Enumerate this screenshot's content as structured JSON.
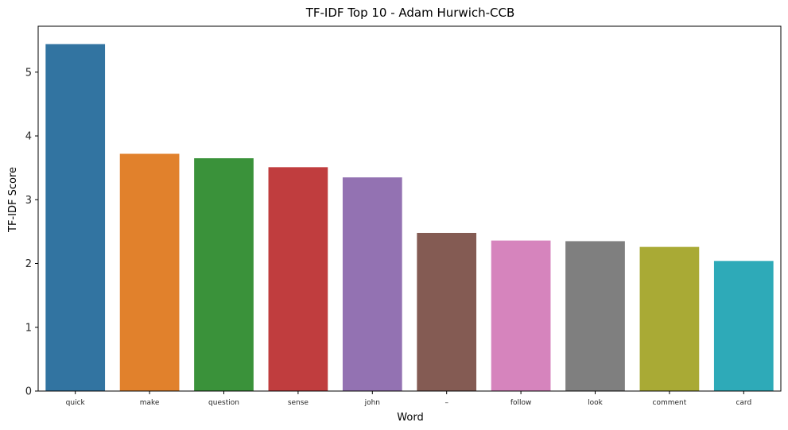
{
  "chart_data": {
    "type": "bar",
    "title": "TF-IDF Top 10 - Adam Hurwich-CCB",
    "xlabel": "Word",
    "ylabel": "TF-IDF Score",
    "categories": [
      "quick",
      "make",
      "question",
      "sense",
      "john",
      "–",
      "follow",
      "look",
      "comment",
      "card"
    ],
    "values": [
      5.44,
      3.72,
      3.65,
      3.51,
      3.35,
      2.48,
      2.36,
      2.35,
      2.26,
      2.04
    ],
    "ylim": [
      0,
      5.72
    ],
    "yticks": [
      0,
      1,
      2,
      3,
      4,
      5
    ],
    "grid": false,
    "colors": [
      "#3274a1",
      "#e1812c",
      "#3a923a",
      "#c03d3e",
      "#9372b2",
      "#845b53",
      "#d684bd",
      "#7f7f7f",
      "#a9aa35",
      "#2eaab8"
    ]
  }
}
